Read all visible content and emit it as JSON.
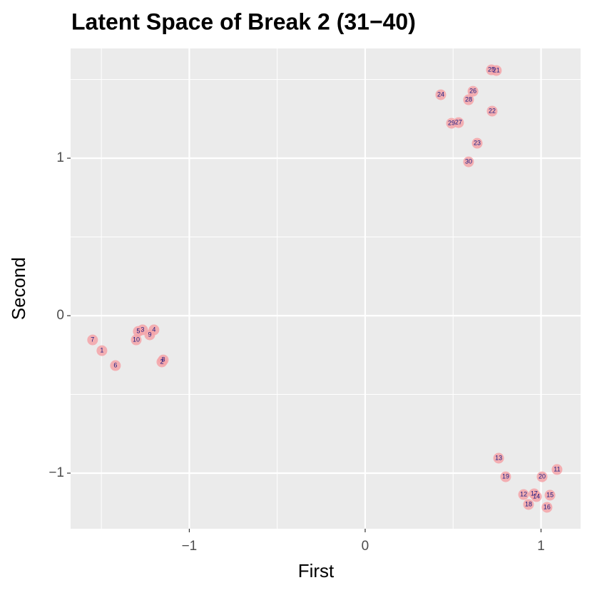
{
  "chart_data": {
    "type": "scatter",
    "title": "Latent Space of Break 2 (31−40)",
    "x_label": "First",
    "y_label": "Second",
    "xlim": [
      -1.675,
      1.225
    ],
    "ylim": [
      -1.353,
      1.697
    ],
    "xticks": [
      {
        "value": -1,
        "label": "−1"
      },
      0,
      1
    ],
    "yticks": [
      {
        "value": -1,
        "label": "−1"
      },
      0,
      1
    ],
    "xminor": [
      -1.5,
      -0.5,
      0.5
    ],
    "yminor": [
      -0.5,
      0.5,
      1.5
    ],
    "grid": true,
    "color": "#f4a3a8",
    "label_color": "#1a1a80",
    "point_labels": [
      "1",
      "2",
      "3",
      "4",
      "5",
      "6",
      "7",
      "8",
      "9",
      "10",
      "11",
      "12",
      "13",
      "14",
      "15",
      "16",
      "17",
      "18",
      "19",
      "20",
      "21",
      "22",
      "23",
      "24",
      "25",
      "26",
      "27",
      "28",
      "29",
      "30"
    ],
    "x": [
      -1.497,
      -1.156,
      -1.266,
      -1.201,
      -1.29,
      -1.42,
      -1.55,
      -1.148,
      -1.225,
      -1.302,
      1.091,
      0.901,
      0.759,
      0.974,
      1.051,
      1.034,
      0.961,
      0.929,
      0.799,
      1.006,
      0.746,
      0.722,
      0.637,
      0.43,
      0.718,
      0.613,
      0.531,
      0.588,
      0.491,
      0.588
    ],
    "values": [
      -0.222,
      -0.294,
      -0.09,
      -0.09,
      -0.1,
      -0.317,
      -0.154,
      -0.281,
      -0.122,
      -0.154,
      -0.977,
      -1.136,
      -0.905,
      -1.149,
      -1.14,
      -1.217,
      -1.131,
      -1.199,
      -1.023,
      -1.023,
      1.557,
      1.299,
      1.095,
      1.403,
      1.561,
      1.425,
      1.226,
      1.371,
      1.222,
      0.977
    ]
  }
}
